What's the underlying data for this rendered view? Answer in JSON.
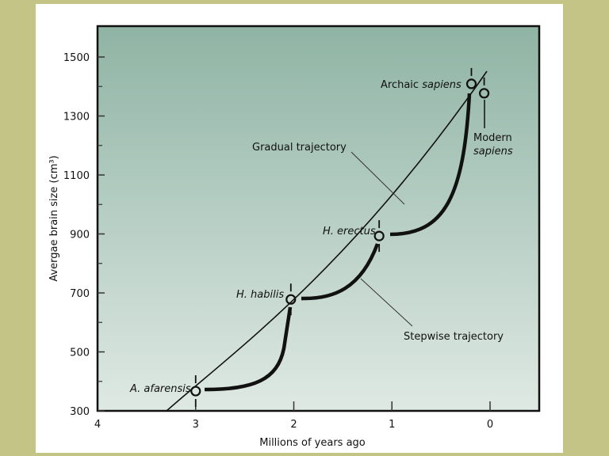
{
  "chart_data": {
    "type": "line",
    "xlabel": "Millions of years ago",
    "ylabel": "Avergae brain size (cm³)",
    "xlim": [
      4,
      0
    ],
    "ylim": [
      300,
      1600
    ],
    "x_ticks": [
      "4",
      "3",
      "2",
      "1",
      "0"
    ],
    "y_ticks": [
      "300",
      "500",
      "700",
      "900",
      "1100",
      "1300",
      "1500"
    ],
    "grid": false,
    "colors": {
      "plot_top": "#8fb4a4",
      "plot_bottom": "#dfe9e4",
      "frame": "#c4c487"
    },
    "points": [
      {
        "name": "A. afarensis",
        "x": 3.0,
        "y": 367
      },
      {
        "name": "H. habilis",
        "x": 2.03,
        "y": 678
      },
      {
        "name": "H. erectus",
        "x": 1.13,
        "y": 893
      },
      {
        "name": "Archaic sapiens",
        "x": 0.19,
        "y": 1409
      },
      {
        "name": "Modern sapiens",
        "x": 0.06,
        "y": 1377
      }
    ],
    "series": [
      {
        "name": "Gradual trajectory"
      },
      {
        "name": "Stepwise trajectory"
      }
    ],
    "labels": {
      "afarensis": "A. afarensis",
      "habilis": "H. habilis",
      "erectus": "H. erectus",
      "archaic_1": "Archaic ",
      "archaic_2": "sapiens",
      "modern_1": "Modern",
      "modern_2": "sapiens",
      "gradual": "Gradual trajectory",
      "stepwise": "Stepwise trajectory"
    }
  }
}
